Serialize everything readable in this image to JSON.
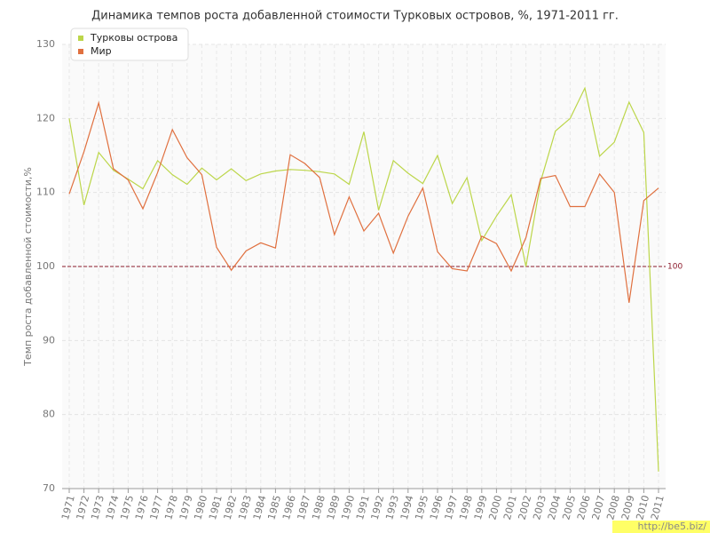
{
  "chart_data": {
    "type": "line",
    "title": "Динамика темпов роста добавленной стоимости Турковых островов, %, 1971-2011 гг.",
    "y_label": "Темп роста добавленной стоимости,%",
    "categories": [
      "1971",
      "1972",
      "1973",
      "1974",
      "1975",
      "1976",
      "1977",
      "1978",
      "1979",
      "1980",
      "1981",
      "1982",
      "1983",
      "1984",
      "1985",
      "1986",
      "1987",
      "1988",
      "1989",
      "1990",
      "1991",
      "1992",
      "1993",
      "1994",
      "1995",
      "1996",
      "1997",
      "1998",
      "1999",
      "2000",
      "2001",
      "2002",
      "2003",
      "2004",
      "2005",
      "2006",
      "2007",
      "2008",
      "2009",
      "2010",
      "2011"
    ],
    "series": [
      {
        "name": "Турковы острова",
        "color": "#bcd64a",
        "values": [
          120,
          108.3,
          115.4,
          113,
          111.8,
          110.5,
          114.3,
          112.4,
          111.1,
          113.3,
          111.7,
          113.2,
          111.6,
          112.5,
          112.9,
          113.1,
          113,
          112.8,
          112.5,
          111.1,
          118.2,
          107.6,
          114.3,
          112.6,
          111.2,
          115,
          108.5,
          112,
          103.5,
          106.8,
          109.7,
          100,
          111.5,
          118.3,
          120,
          124.1,
          114.9,
          116.8,
          122.2,
          118.1,
          72.3
        ]
      },
      {
        "name": "Мир",
        "color": "#e0703f",
        "values": [
          109.8,
          115.5,
          122.1,
          113.2,
          111.7,
          107.8,
          112.7,
          118.5,
          114.7,
          112.4,
          102.6,
          99.5,
          102.1,
          103.2,
          102.5,
          115.1,
          113.9,
          112,
          104.3,
          109.4,
          104.8,
          107.2,
          101.8,
          106.8,
          110.6,
          102,
          99.7,
          99.4,
          104.1,
          103.1,
          99.4,
          103.9,
          111.9,
          112.3,
          108.1,
          108.1,
          112.5,
          110,
          95.1,
          108.9,
          110.6
        ]
      }
    ],
    "ylim": [
      70,
      130
    ],
    "yticks": [
      70,
      80,
      90,
      100,
      110,
      120,
      130
    ],
    "hline": 100,
    "hline_color": "#8b1a2b",
    "grid": true,
    "watermark": "http://be5.biz/"
  }
}
